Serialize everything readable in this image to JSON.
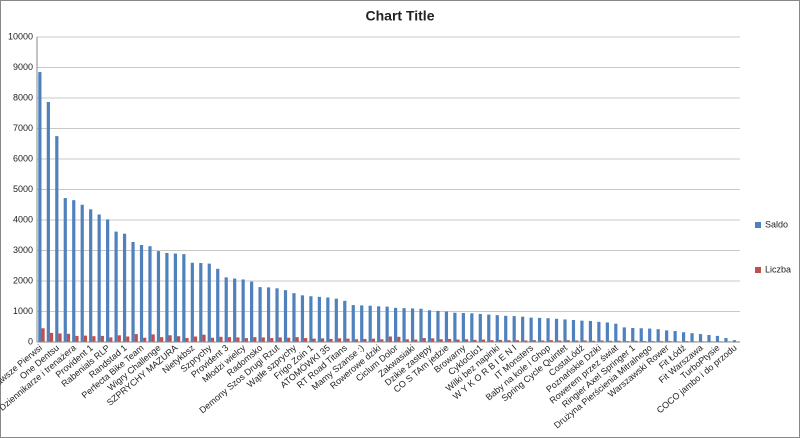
{
  "chart_data": {
    "type": "bar",
    "title": "Chart Title",
    "categories": [
      "Zawsze Pierwsi",
      null,
      "One Dentsu",
      null,
      "Dziennikarze i trenażera",
      null,
      "Provident 1",
      null,
      "Rabenials RLP",
      null,
      "Randstad 1",
      null,
      "Perfecta Bike Team",
      null,
      "Wigry Challenge",
      null,
      "SZPRYCHY MAZURA",
      null,
      "Nietykbsz",
      null,
      "Szprychy",
      null,
      "Provident 3",
      null,
      "Młodzi wielcy",
      null,
      "Radomsko",
      null,
      "Demony Szos Drugi Rzut",
      null,
      "Wątłe szprychy",
      null,
      "Frigo Zoin 1",
      null,
      "ATOMÓWKI 35",
      null,
      "RT Road Titans",
      null,
      "Mamy Szanse :)",
      null,
      "Rowerowe dziki",
      null,
      "Ciclum Dolor",
      null,
      "Zakwasiaki",
      null,
      "Dzikie zastępy",
      null,
      "CO S TAm jedzie",
      null,
      "Browarny",
      null,
      "CykloGlo1",
      null,
      "Wilki bez napinki",
      null,
      "W Y K O R B I E N I",
      null,
      "IT Monsters",
      null,
      "Baby na kole i Ghop",
      null,
      "Spring Cycle Quintet",
      null,
      "CostaLódź",
      null,
      "Poznańskie Dziki",
      null,
      "Rowerem przez świat",
      null,
      "Ringier Axel Springer 1",
      null,
      "Drużyna Pierścienia Mitralnego",
      null,
      "Warszawski Rower",
      null,
      "Fit Łódź",
      null,
      "Fit Warszawa",
      null,
      "TurboPtysie",
      null,
      "COCO jambo i do przodu"
    ],
    "series": [
      {
        "name": "Saldo",
        "color": "#4f81bd",
        "values": [
          8850,
          7870,
          6750,
          4720,
          4650,
          4500,
          4350,
          4180,
          4020,
          3620,
          3550,
          3280,
          3180,
          3140,
          2980,
          2920,
          2900,
          2880,
          2600,
          2590,
          2570,
          2400,
          2120,
          2080,
          2050,
          1980,
          1800,
          1790,
          1760,
          1700,
          1600,
          1530,
          1500,
          1480,
          1460,
          1420,
          1350,
          1210,
          1200,
          1190,
          1170,
          1160,
          1120,
          1110,
          1100,
          1090,
          1040,
          1020,
          1000,
          960,
          950,
          940,
          920,
          900,
          880,
          860,
          850,
          830,
          800,
          790,
          780,
          760,
          740,
          720,
          700,
          690,
          660,
          640,
          600,
          480,
          460,
          450,
          440,
          420,
          380,
          360,
          320,
          290,
          260,
          230,
          200,
          130,
          60
        ]
      },
      {
        "name": "Liczba",
        "color": "#c0504d",
        "values": [
          450,
          300,
          280,
          270,
          200,
          210,
          190,
          200,
          150,
          220,
          180,
          260,
          140,
          250,
          160,
          220,
          190,
          130,
          180,
          240,
          140,
          170,
          160,
          150,
          130,
          160,
          150,
          130,
          150,
          140,
          160,
          130,
          110,
          120,
          100,
          120,
          110,
          90,
          100,
          110,
          90,
          180,
          170,
          90,
          80,
          130,
          120,
          90,
          100,
          80,
          90,
          70,
          80,
          60,
          70,
          60,
          60,
          50,
          60,
          50,
          60,
          50,
          60,
          50,
          50,
          40,
          50,
          40,
          40,
          30,
          40,
          30,
          30,
          30,
          30,
          20,
          30,
          20,
          20,
          20,
          20,
          20,
          20
        ]
      }
    ],
    "ylim": [
      0,
      10000
    ],
    "yticks": [
      0,
      1000,
      2000,
      3000,
      4000,
      5000,
      6000,
      7000,
      8000,
      9000,
      10000
    ],
    "grid": true,
    "legend": "right"
  }
}
